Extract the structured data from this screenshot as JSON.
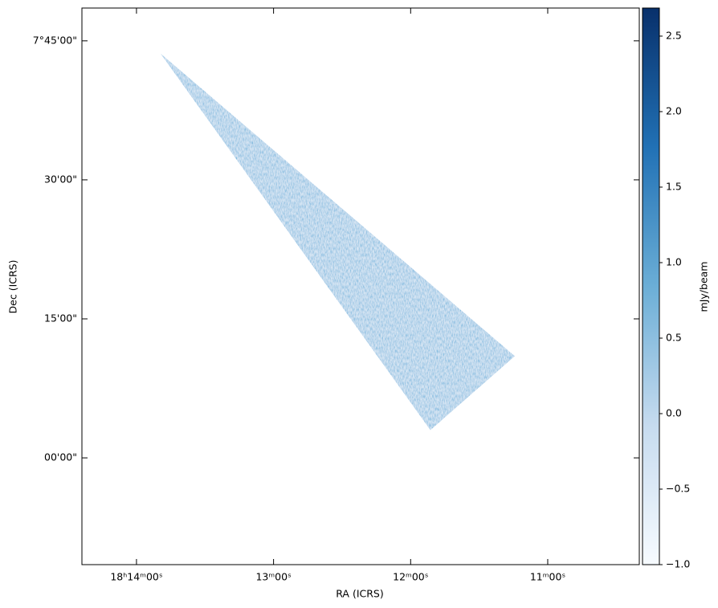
{
  "chart_data": {
    "type": "image",
    "xlabel": "RA (ICRS)",
    "ylabel": "Dec (ICRS)",
    "xlim": [
      14.398,
      10.332
    ],
    "ylim": [
      6.808,
      7.809
    ],
    "xticks": [
      {
        "value": 14,
        "label": "18ʰ14ᵐ00ˢ"
      },
      {
        "value": 13,
        "label": "13ᵐ00ˢ"
      },
      {
        "value": 12,
        "label": "12ᵐ00ˢ"
      },
      {
        "value": 11,
        "label": "11ᵐ00ˢ"
      }
    ],
    "yticks": [
      {
        "value": 7.75,
        "label": "7°45'00\""
      },
      {
        "value": 7.5,
        "label": "30'00\""
      },
      {
        "value": 7.25,
        "label": "15'00\""
      },
      {
        "value": 7.0,
        "label": "00'00\""
      }
    ],
    "footprint": {
      "x": [
        13.824,
        11.24,
        11.856
      ],
      "y": [
        7.727,
        7.183,
        7.05
      ]
    },
    "colormap": [
      "#08306b",
      "#2171b5",
      "#6baed6",
      "#c6dbef",
      "#f7fbff"
    ],
    "colorbar": {
      "label": "mJy/beam",
      "lim": [
        -1.0,
        2.686
      ],
      "ticks": [
        {
          "value": -1.0,
          "label": "−1.0"
        },
        {
          "value": -0.5,
          "label": "−0.5"
        },
        {
          "value": 0.0,
          "label": "0.0"
        },
        0.5,
        {
          "value": 1.0,
          "label": "1.0"
        },
        1.5,
        {
          "value": 2.0,
          "label": "2.0"
        },
        2.5
      ]
    }
  }
}
